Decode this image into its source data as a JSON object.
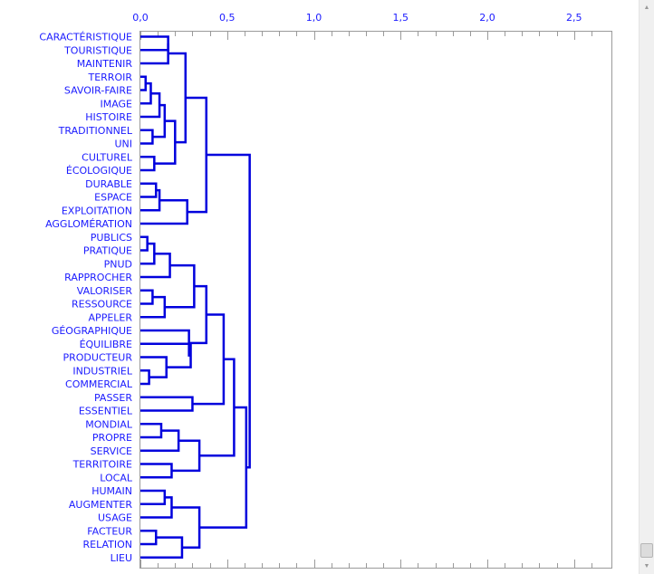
{
  "chart_data": {
    "type": "dendrogram",
    "title": "",
    "xlabel": "",
    "ylabel": "",
    "xlim": [
      0,
      2.7
    ],
    "x_ticks": [
      "0,0",
      "0,5",
      "1,0",
      "1,5",
      "2,0",
      "2,5"
    ],
    "x_tick_values": [
      0,
      0.5,
      1.0,
      1.5,
      2.0,
      2.5
    ],
    "line_color": "#0000dd",
    "label_color": "#1a1aff",
    "leaves": [
      "CARACTÉRISTIQUE",
      "TOURISTIQUE",
      "MAINTENIR",
      "TERROIR",
      "SAVOIR-FAIRE",
      "IMAGE",
      "HISTOIRE",
      "TRADITIONNEL",
      "UNI",
      "CULTUREL",
      "ÉCOLOGIQUE",
      "DURABLE",
      "ESPACE",
      "EXPLOITATION",
      "AGGLOMÉRATION",
      "PUBLICS",
      "PRATIQUE",
      "PNUD",
      "RAPPROCHER",
      "VALORISER",
      "RESSOURCE",
      "APPELER",
      "GÉOGRAPHIQUE",
      "ÉQUILIBRE",
      "PRODUCTEUR",
      "INDUSTRIEL",
      "COMMERCIAL",
      "PASSER",
      "ESSENTIEL",
      "MONDIAL",
      "PROPRE",
      "SERVICE",
      "TERRITOIRE",
      "LOCAL",
      "HUMAIN",
      "AUGMENTER",
      "USAGE",
      "FACTEUR",
      "RELATION",
      "LIEU"
    ],
    "merges": [
      {
        "a": "CARACTÉRISTIQUE",
        "b": "TOURISTIQUE",
        "h": 0.16,
        "id": "c1"
      },
      {
        "a": "c1",
        "b": "MAINTENIR",
        "h": 0.16,
        "id": "c2"
      },
      {
        "a": "TERROIR",
        "b": "SAVOIR-FAIRE",
        "h": 0.03,
        "id": "c3"
      },
      {
        "a": "c3",
        "b": "IMAGE",
        "h": 0.06,
        "id": "c4"
      },
      {
        "a": "c4",
        "b": "HISTOIRE",
        "h": 0.11,
        "id": "c5"
      },
      {
        "a": "TRADITIONNEL",
        "b": "UNI",
        "h": 0.07,
        "id": "c6"
      },
      {
        "a": "c5",
        "b": "c6",
        "h": 0.14,
        "id": "c7"
      },
      {
        "a": "CULTUREL",
        "b": "ÉCOLOGIQUE",
        "h": 0.08,
        "id": "c8"
      },
      {
        "a": "c7",
        "b": "c8",
        "h": 0.2,
        "id": "c9"
      },
      {
        "a": "c2",
        "b": "c9",
        "h": 0.26,
        "id": "c10"
      },
      {
        "a": "DURABLE",
        "b": "ESPACE",
        "h": 0.09,
        "id": "c11"
      },
      {
        "a": "c11",
        "b": "EXPLOITATION",
        "h": 0.11,
        "id": "c12"
      },
      {
        "a": "c12",
        "b": "AGGLOMÉRATION",
        "h": 0.27,
        "id": "c13"
      },
      {
        "a": "c10",
        "b": "c13",
        "h": 0.38,
        "id": "c14"
      },
      {
        "a": "PUBLICS",
        "b": "PRATIQUE",
        "h": 0.04,
        "id": "c15"
      },
      {
        "a": "c15",
        "b": "PNUD",
        "h": 0.08,
        "id": "c16"
      },
      {
        "a": "c16",
        "b": "RAPPROCHER",
        "h": 0.17,
        "id": "c17"
      },
      {
        "a": "VALORISER",
        "b": "RESSOURCE",
        "h": 0.07,
        "id": "c18"
      },
      {
        "a": "c18",
        "b": "APPELER",
        "h": 0.14,
        "id": "c19"
      },
      {
        "a": "c17",
        "b": "c19",
        "h": 0.31,
        "id": "c20"
      },
      {
        "a": "INDUSTRIEL",
        "b": "COMMERCIAL",
        "h": 0.05,
        "id": "c21"
      },
      {
        "a": "PRODUCTEUR",
        "b": "c21",
        "h": 0.15,
        "id": "c22"
      },
      {
        "a": "ÉQUILIBRE",
        "b": "c22",
        "h": 0.29,
        "id": "c23"
      },
      {
        "a": "GÉOGRAPHIQUE",
        "b": "c23",
        "h": 0.28,
        "id": "c24"
      },
      {
        "a": "c20",
        "b": "c24",
        "h": 0.38,
        "id": "c25"
      },
      {
        "a": "PASSER",
        "b": "ESSENTIEL",
        "h": 0.3,
        "id": "c26"
      },
      {
        "a": "c25",
        "b": "c26",
        "h": 0.48,
        "id": "c27"
      },
      {
        "a": "MONDIAL",
        "b": "PROPRE",
        "h": 0.12,
        "id": "c28"
      },
      {
        "a": "c28",
        "b": "SERVICE",
        "h": 0.22,
        "id": "c29"
      },
      {
        "a": "TERRITOIRE",
        "b": "LOCAL",
        "h": 0.18,
        "id": "c30"
      },
      {
        "a": "c29",
        "b": "c30",
        "h": 0.34,
        "id": "c31"
      },
      {
        "a": "c27",
        "b": "c31",
        "h": 0.54,
        "id": "c32"
      },
      {
        "a": "HUMAIN",
        "b": "AUGMENTER",
        "h": 0.14,
        "id": "c33"
      },
      {
        "a": "c33",
        "b": "USAGE",
        "h": 0.18,
        "id": "c34"
      },
      {
        "a": "FACTEUR",
        "b": "RELATION",
        "h": 0.09,
        "id": "c35"
      },
      {
        "a": "c35",
        "b": "LIEU",
        "h": 0.24,
        "id": "c36"
      },
      {
        "a": "c34",
        "b": "c36",
        "h": 0.34,
        "id": "c37"
      },
      {
        "a": "c32",
        "b": "c37",
        "h": 0.61,
        "id": "c38"
      },
      {
        "a": "c14",
        "b": "c38",
        "h": 0.63,
        "id": "root"
      }
    ]
  }
}
